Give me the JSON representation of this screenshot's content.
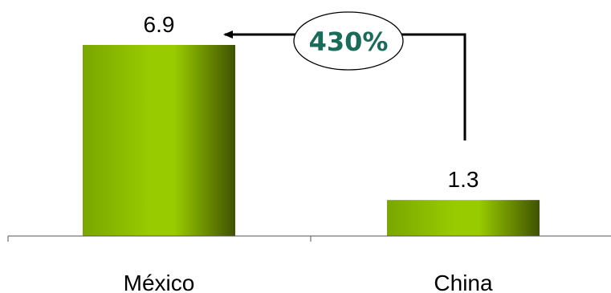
{
  "chart_data": {
    "type": "bar",
    "categories": [
      "México",
      "China"
    ],
    "values": [
      6.9,
      1.3
    ],
    "value_labels": [
      "6.9",
      "1.3"
    ],
    "ylim": [
      0,
      6.9
    ],
    "grid": false,
    "legend": "none",
    "annotation": {
      "label": "430%",
      "from_category": "China",
      "to_category": "México"
    }
  },
  "colors": {
    "bar_center": "#99cc00",
    "bar_edge": "#3f5200",
    "bar_mid": "#7aa600",
    "annotation_text": "#1a6b5a",
    "axis": "#555555",
    "connector": "#000000"
  }
}
